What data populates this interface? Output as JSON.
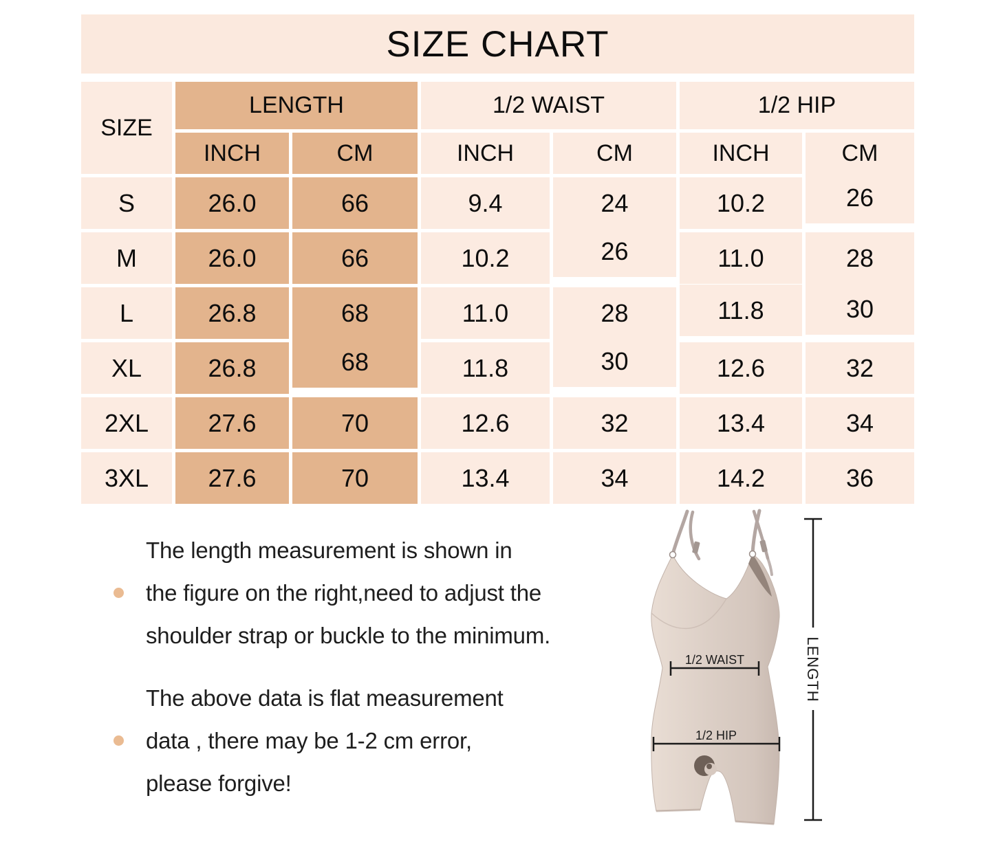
{
  "title": "SIZE CHART",
  "table": {
    "size_header": "SIZE",
    "groups": [
      {
        "label": "LENGTH",
        "sub": [
          "INCH",
          "CM"
        ]
      },
      {
        "label": "1/2 WAIST",
        "sub": [
          "INCH",
          "CM"
        ]
      },
      {
        "label": "1/2 HIP",
        "sub": [
          "INCH",
          "CM"
        ]
      }
    ],
    "rows": [
      {
        "size": "S",
        "cells": [
          "26.0",
          "66",
          "9.4",
          "24",
          "10.2",
          "26"
        ]
      },
      {
        "size": "M",
        "cells": [
          "26.0",
          "66",
          "10.2",
          "26",
          "11.0",
          "28"
        ]
      },
      {
        "size": "L",
        "cells": [
          "26.8",
          "68",
          "11.0",
          "28",
          "11.8",
          "30"
        ]
      },
      {
        "size": "XL",
        "cells": [
          "26.8",
          "68",
          "11.8",
          "30",
          "12.6",
          "32"
        ]
      },
      {
        "size": "2XL",
        "cells": [
          "27.6",
          "70",
          "12.6",
          "32",
          "13.4",
          "34"
        ]
      },
      {
        "size": "3XL",
        "cells": [
          "27.6",
          "70",
          "13.4",
          "34",
          "14.2",
          "36"
        ]
      }
    ]
  },
  "notes": [
    {
      "lines": [
        "The length measurement is shown in",
        "the figure on the right,need to adjust the",
        "shoulder strap or buckle to the minimum."
      ]
    },
    {
      "lines": [
        "The above data is flat measurement",
        "data , there may be 1-2 cm error,",
        "please forgive!"
      ]
    }
  ],
  "figure": {
    "waist_label": "1/2 WAIST",
    "hip_label": "1/2 HIP",
    "length_label": "LENGTH"
  },
  "colors": {
    "banner_bg": "#fbe9de",
    "cell_pink": "#fcebe1",
    "cell_tan": "#e3b48d",
    "bullet_dot": "#eabb92",
    "text": "#111111"
  },
  "chart_data": {
    "type": "table",
    "title": "SIZE CHART",
    "columns": [
      "SIZE",
      "LENGTH INCH",
      "LENGTH CM",
      "1/2 WAIST INCH",
      "1/2 WAIST CM",
      "1/2 HIP INCH",
      "1/2 HIP CM"
    ],
    "rows": [
      [
        "S",
        26.0,
        66,
        9.4,
        24,
        10.2,
        26
      ],
      [
        "M",
        26.0,
        66,
        10.2,
        26,
        11.0,
        28
      ],
      [
        "L",
        26.8,
        68,
        11.0,
        28,
        11.8,
        30
      ],
      [
        "XL",
        26.8,
        68,
        11.8,
        30,
        12.6,
        32
      ],
      [
        "2XL",
        27.6,
        70,
        12.6,
        32,
        13.4,
        34
      ],
      [
        "3XL",
        27.6,
        70,
        13.4,
        34,
        14.2,
        36
      ]
    ]
  }
}
